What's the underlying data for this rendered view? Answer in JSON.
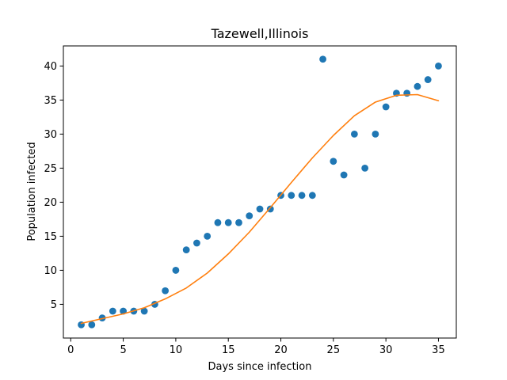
{
  "chart_data": {
    "type": "scatter",
    "title": "Tazewell,Illinois",
    "xlabel": "Days since infection",
    "ylabel": "Population infected",
    "xlim": [
      -0.7,
      36.7
    ],
    "ylim": [
      0.05,
      42.95
    ],
    "xticks": [
      0,
      5,
      10,
      15,
      20,
      25,
      30,
      35
    ],
    "yticks": [
      5,
      10,
      15,
      20,
      25,
      30,
      35,
      40
    ],
    "grid": false,
    "legend": "none",
    "series": [
      {
        "kind": "scatter",
        "color": "#1f77b4",
        "x": [
          1,
          2,
          3,
          4,
          5,
          6,
          7,
          8,
          9,
          10,
          11,
          12,
          13,
          14,
          15,
          16,
          17,
          18,
          19,
          20,
          21,
          22,
          23,
          24,
          25,
          26,
          27,
          28,
          29,
          30,
          31,
          32,
          33,
          34,
          35
        ],
        "y": [
          2,
          2,
          3,
          4,
          4,
          4,
          4,
          5,
          7,
          10,
          13,
          14,
          15,
          17,
          17,
          17,
          18,
          19,
          19,
          21,
          21,
          21,
          21,
          41,
          26,
          24,
          30,
          25,
          30,
          34,
          36,
          36,
          37,
          38,
          40
        ]
      },
      {
        "kind": "line",
        "color": "#ff7f0e",
        "x": [
          1,
          3,
          5,
          7,
          9,
          11,
          13,
          15,
          17,
          19,
          21,
          23,
          25,
          27,
          29,
          31,
          33,
          35
        ],
        "y": [
          2.2,
          2.9,
          3.6,
          4.5,
          5.8,
          7.4,
          9.6,
          12.4,
          15.6,
          19.2,
          22.9,
          26.5,
          29.8,
          32.7,
          34.7,
          35.7,
          35.8,
          34.9
        ]
      }
    ]
  }
}
